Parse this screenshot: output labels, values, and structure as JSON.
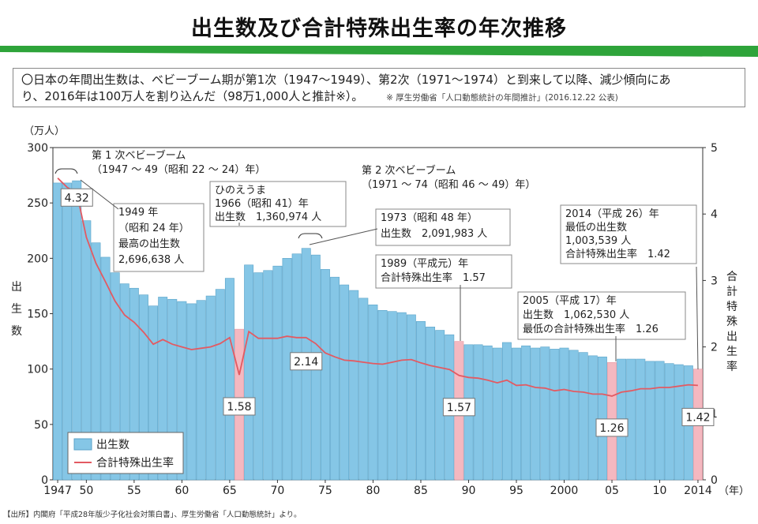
{
  "title": "出生数及び合計特殊出生率の年次推移",
  "summary": {
    "line1": "〇日本の年間出生数は、ベビーブーム期が第1次（1947〜1949）、第2次（1971〜1974）と到来して以降、減少傾向にあ",
    "line2": "り、2016年は100万人を割り込んだ（98万1,000人と推計※）。",
    "source": "※ 厚生労働省「人口動態統計の年間推計」(2016.12.22 公表)"
  },
  "footer": "【出所】内閣府「平成28年版少子化社会対策白書」、厚生労働省「人口動態統計」より。",
  "colors": {
    "bar": "#85c6e6",
    "bar_stroke": "#5aa3c8",
    "highlight": "#f4b8c0",
    "line": "#e35a62",
    "green": "#2ea43a"
  },
  "chart_data": {
    "type": "bar",
    "years": [
      1947,
      1948,
      1949,
      1950,
      1951,
      1952,
      1953,
      1954,
      1955,
      1956,
      1957,
      1958,
      1959,
      1960,
      1961,
      1962,
      1963,
      1964,
      1965,
      1966,
      1967,
      1968,
      1969,
      1970,
      1971,
      1972,
      1973,
      1974,
      1975,
      1976,
      1977,
      1978,
      1979,
      1980,
      1981,
      1982,
      1983,
      1984,
      1985,
      1986,
      1987,
      1988,
      1989,
      1990,
      1991,
      1992,
      1993,
      1994,
      1995,
      1996,
      1997,
      1998,
      1999,
      2000,
      2001,
      2002,
      2003,
      2004,
      2005,
      2006,
      2007,
      2008,
      2009,
      2010,
      2011,
      2012,
      2013,
      2014
    ],
    "series": [
      {
        "name": "出生数",
        "unit": "万人",
        "values": [
          268,
          268,
          270,
          234,
          214,
          201,
          187,
          177,
          173,
          167,
          157,
          165,
          163,
          161,
          159,
          162,
          166,
          172,
          182,
          136,
          194,
          187,
          189,
          193,
          200,
          204,
          209,
          203,
          190,
          183,
          176,
          171,
          164,
          158,
          153,
          152,
          151,
          149,
          143,
          138,
          135,
          131,
          125,
          122,
          122,
          121,
          119,
          124,
          119,
          121,
          119,
          120,
          118,
          119,
          117,
          115,
          112,
          111,
          106,
          109,
          109,
          109,
          107,
          107,
          105,
          104,
          103,
          100
        ]
      },
      {
        "name": "合計特殊出生率",
        "values": [
          4.54,
          4.4,
          4.32,
          3.65,
          3.26,
          2.98,
          2.69,
          2.48,
          2.37,
          2.22,
          2.04,
          2.11,
          2.04,
          2.0,
          1.96,
          1.98,
          2.0,
          2.05,
          2.14,
          1.58,
          2.23,
          2.13,
          2.13,
          2.13,
          2.16,
          2.14,
          2.14,
          2.05,
          1.91,
          1.85,
          1.8,
          1.79,
          1.77,
          1.75,
          1.74,
          1.77,
          1.8,
          1.81,
          1.76,
          1.72,
          1.69,
          1.66,
          1.57,
          1.54,
          1.53,
          1.5,
          1.46,
          1.5,
          1.42,
          1.43,
          1.39,
          1.38,
          1.34,
          1.36,
          1.33,
          1.32,
          1.29,
          1.29,
          1.26,
          1.32,
          1.34,
          1.37,
          1.37,
          1.39,
          1.39,
          1.41,
          1.43,
          1.42
        ]
      }
    ],
    "highlight_years": [
      1966,
      1989,
      2005,
      2014
    ],
    "x_ticks": [
      {
        "year": 1947,
        "label": "1947"
      },
      {
        "year": 1950,
        "label": "50"
      },
      {
        "year": 1955,
        "label": "55"
      },
      {
        "year": 1960,
        "label": "60"
      },
      {
        "year": 1965,
        "label": "65"
      },
      {
        "year": 1970,
        "label": "70"
      },
      {
        "year": 1975,
        "label": "75"
      },
      {
        "year": 1980,
        "label": "80"
      },
      {
        "year": 1985,
        "label": "85"
      },
      {
        "year": 1990,
        "label": "90"
      },
      {
        "year": 1995,
        "label": "95"
      },
      {
        "year": 2000,
        "label": "2000"
      },
      {
        "year": 2005,
        "label": "05"
      },
      {
        "year": 2010,
        "label": "10"
      },
      {
        "year": 2014,
        "label": "2014"
      }
    ],
    "x_unit": "（年）",
    "y_left": {
      "label_unit": "（万人）",
      "label": "出生数",
      "min": 0,
      "max": 300,
      "ticks": [
        0,
        50,
        100,
        150,
        200,
        250,
        300
      ]
    },
    "y_right": {
      "label": "合計特殊出生率",
      "min": 0,
      "max": 5,
      "ticks": [
        0,
        1,
        2,
        3,
        4,
        5
      ]
    },
    "legend": {
      "position": "bottom-left",
      "bar": "出生数",
      "line": "合計特殊出生率"
    },
    "point_labels": [
      {
        "year": 1949,
        "text": "4.32"
      },
      {
        "year": 1966,
        "text": "1.58"
      },
      {
        "year": 1973,
        "text": "2.14"
      },
      {
        "year": 1989,
        "text": "1.57"
      },
      {
        "year": 2005,
        "text": "1.26"
      },
      {
        "year": 2014,
        "text": "1.42"
      }
    ],
    "annotations": {
      "boom1": [
        "第 1 次ベビーブーム",
        "（1947 〜 49（昭和 22 〜 24）年）"
      ],
      "boom2": [
        "第 2 次ベビーブーム",
        "（1971 〜 74（昭和 46 〜 49）年）"
      ],
      "a1949": [
        "1949 年",
        "（昭和 24 年）",
        "最高の出生数",
        "2,696,638 人"
      ],
      "a1966": [
        "ひのえうま",
        "1966（昭和 41）年",
        "出生数　1,360,974 人"
      ],
      "a1973": [
        "1973（昭和 48 年）",
        "出生数　2,091,983 人"
      ],
      "a1989": [
        "1989（平成元）年",
        "合計特殊出生率　1.57"
      ],
      "a2005": [
        "2005（平成 17）年",
        "出生数　1,062,530 人",
        "最低の合計特殊出生率　1.26"
      ],
      "a2014": [
        "2014（平成 26）年",
        "最低の出生数",
        "1,003,539 人",
        "合計特殊出生率　1.42"
      ]
    }
  }
}
